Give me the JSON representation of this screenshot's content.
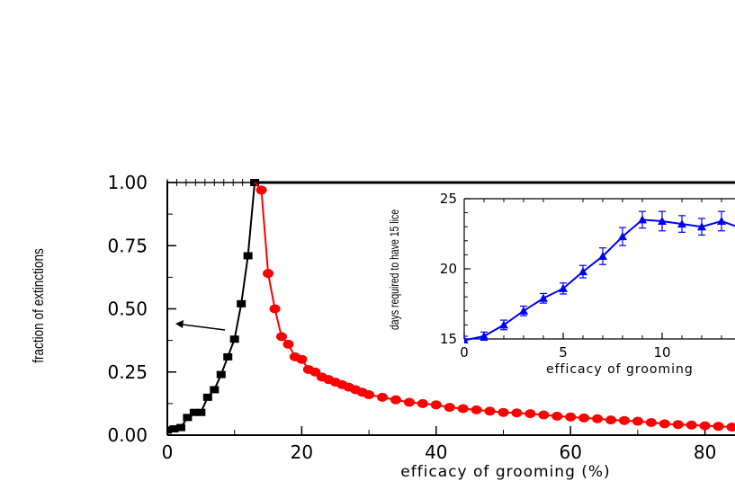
{
  "chart_data": [
    {
      "type": "line",
      "title": "",
      "xlabel": "efficacy of grooming (%)",
      "ylabel": "fraction of extinctions",
      "xlim": [
        0,
        85
      ],
      "ylim": [
        0,
        1
      ],
      "x_ticks": [
        "0",
        "20",
        "40",
        "60",
        "80"
      ],
      "y_ticks": [
        "0.00",
        "0.25",
        "0.50",
        "0.75",
        "1.00"
      ],
      "colors": {
        "series1": "#000000",
        "series2": "#ff0000",
        "arrow": "#000000"
      },
      "series": [
        {
          "marker": "square",
          "x": [
            0,
            1,
            2,
            3,
            4,
            5,
            6,
            7,
            8,
            9,
            10,
            11,
            12,
            13
          ],
          "y": [
            0.02,
            0.025,
            0.03,
            0.07,
            0.09,
            0.09,
            0.15,
            0.18,
            0.24,
            0.31,
            0.38,
            0.52,
            0.71,
            1.0
          ]
        },
        {
          "marker": "circle",
          "x": [
            14,
            15,
            16,
            17,
            18,
            19,
            20,
            21,
            22,
            23,
            24,
            25,
            26,
            27,
            28,
            29,
            30,
            32,
            34,
            36,
            38,
            40,
            42,
            44,
            46,
            48,
            50,
            52,
            54,
            56,
            58,
            60,
            62,
            64,
            66,
            68,
            70,
            72,
            74,
            76,
            78,
            80,
            82,
            84
          ],
          "y": [
            0.97,
            0.64,
            0.5,
            0.39,
            0.36,
            0.31,
            0.3,
            0.26,
            0.25,
            0.23,
            0.22,
            0.21,
            0.2,
            0.19,
            0.18,
            0.17,
            0.16,
            0.15,
            0.14,
            0.13,
            0.125,
            0.12,
            0.11,
            0.105,
            0.1,
            0.095,
            0.09,
            0.088,
            0.085,
            0.08,
            0.075,
            0.072,
            0.068,
            0.065,
            0.06,
            0.058,
            0.055,
            0.05,
            0.045,
            0.042,
            0.04,
            0.037,
            0.035,
            0.032
          ]
        }
      ],
      "reference_line": {
        "y": 1.0,
        "from_x": 13,
        "to_x": 85
      }
    },
    {
      "type": "line",
      "title": "",
      "xlabel": "efficacy of grooming",
      "ylabel": "days required to have 15 lice",
      "xlim": [
        0,
        13.5
      ],
      "ylim": [
        15,
        25
      ],
      "x_ticks": [
        "0",
        "5",
        "10"
      ],
      "y_ticks": [
        "15",
        "20",
        "25"
      ],
      "colors": {
        "series1": "#0000ff"
      },
      "series": [
        {
          "marker": "triangle",
          "error_bars": true,
          "x": [
            0,
            1,
            2,
            3,
            4,
            5,
            6,
            7,
            8,
            9,
            10,
            11,
            12,
            13,
            14
          ],
          "y": [
            14.9,
            15.2,
            16.0,
            17.0,
            17.9,
            18.6,
            19.8,
            20.9,
            22.3,
            23.5,
            23.4,
            23.2,
            23.0,
            23.4,
            22.9
          ],
          "err": [
            0.1,
            0.1,
            0.15,
            0.15,
            0.15,
            0.2,
            0.25,
            0.4,
            0.45,
            0.4,
            0.5,
            0.4,
            0.4,
            0.5,
            0.4
          ]
        }
      ]
    }
  ]
}
